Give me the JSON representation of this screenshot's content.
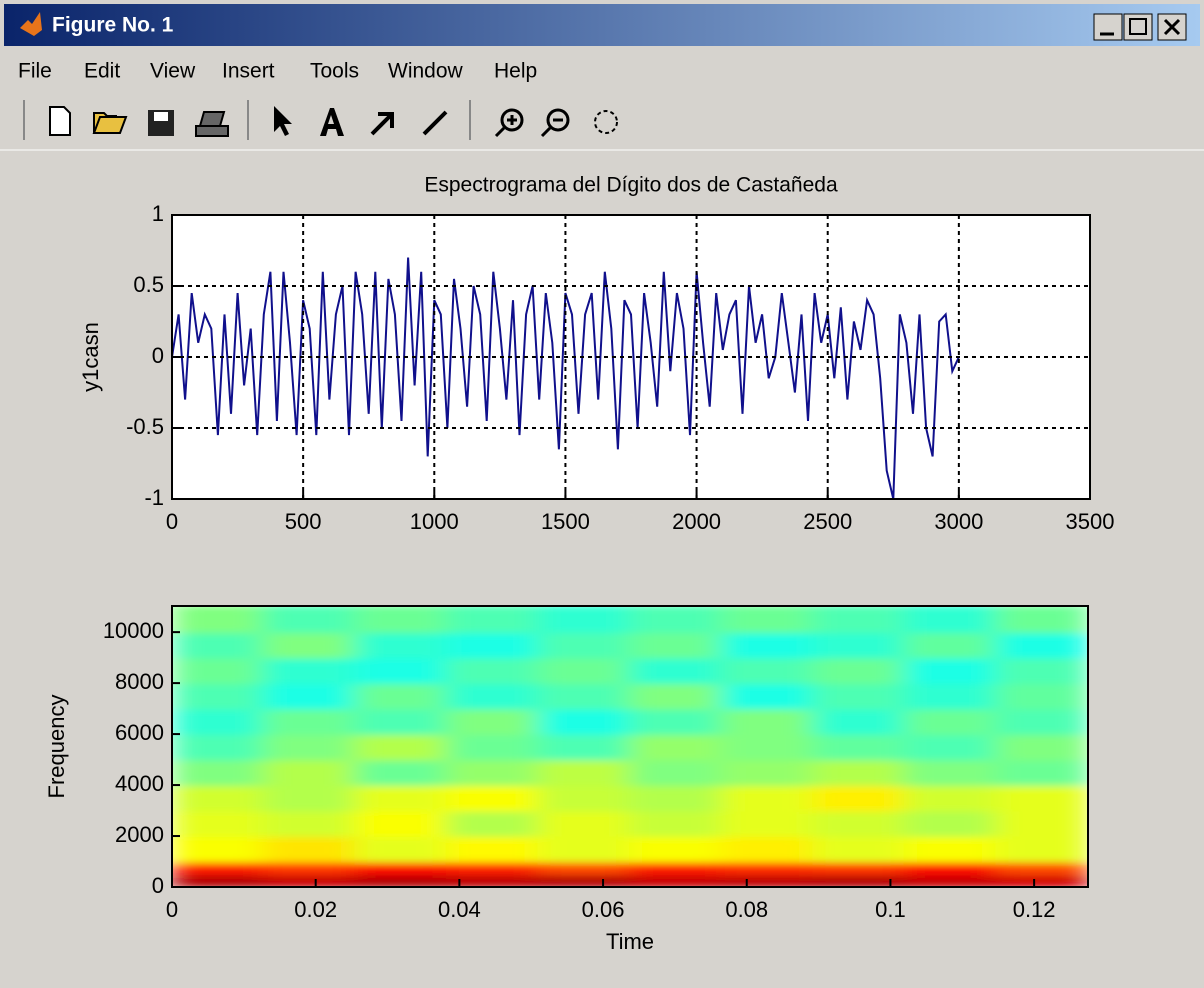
{
  "window": {
    "title": "Figure No. 1",
    "menu": [
      "File",
      "Edit",
      "View",
      "Insert",
      "Tools",
      "Window",
      "Help"
    ]
  },
  "chart_data": [
    {
      "type": "line",
      "title": "Espectrograma del Dígito dos de Castañeda",
      "ylabel": "y1casn",
      "xlim": [
        0,
        3500
      ],
      "ylim": [
        -1,
        1
      ],
      "xticks": [
        0,
        500,
        1000,
        1500,
        2000,
        2500,
        3000,
        3500
      ],
      "yticks": [
        -1,
        -0.5,
        0,
        0.5,
        1
      ],
      "grid": true,
      "x": [
        0,
        25,
        50,
        75,
        100,
        125,
        150,
        175,
        200,
        225,
        250,
        275,
        300,
        325,
        350,
        375,
        400,
        425,
        450,
        475,
        500,
        525,
        550,
        575,
        600,
        625,
        650,
        675,
        700,
        725,
        750,
        775,
        800,
        825,
        850,
        875,
        900,
        925,
        950,
        975,
        1000,
        1025,
        1050,
        1075,
        1100,
        1125,
        1150,
        1175,
        1200,
        1225,
        1250,
        1275,
        1300,
        1325,
        1350,
        1375,
        1400,
        1425,
        1450,
        1475,
        1500,
        1525,
        1550,
        1575,
        1600,
        1625,
        1650,
        1675,
        1700,
        1725,
        1750,
        1775,
        1800,
        1825,
        1850,
        1875,
        1900,
        1925,
        1950,
        1975,
        2000,
        2025,
        2050,
        2075,
        2100,
        2125,
        2150,
        2175,
        2200,
        2225,
        2250,
        2275,
        2300,
        2325,
        2350,
        2375,
        2400,
        2425,
        2450,
        2475,
        2500,
        2525,
        2550,
        2575,
        2600,
        2625,
        2650,
        2675,
        2700,
        2725,
        2750,
        2775,
        2800,
        2825,
        2850,
        2875,
        2900,
        2925,
        2950,
        2975,
        3000
      ],
      "series": [
        {
          "color": "#10108c",
          "values": [
            0,
            0.3,
            -0.3,
            0.45,
            0.1,
            0.3,
            0.2,
            -0.55,
            0.3,
            -0.4,
            0.45,
            -0.2,
            0.2,
            -0.55,
            0.3,
            0.6,
            -0.45,
            0.6,
            0.1,
            -0.55,
            0.4,
            0.2,
            -0.55,
            0.6,
            -0.3,
            0.3,
            0.5,
            -0.55,
            0.6,
            0.3,
            -0.4,
            0.6,
            -0.5,
            0.55,
            0.3,
            -0.45,
            0.7,
            -0.2,
            0.6,
            -0.7,
            0.4,
            0.3,
            -0.5,
            0.55,
            0.2,
            -0.35,
            0.5,
            0.3,
            -0.45,
            0.6,
            0.2,
            -0.3,
            0.4,
            -0.55,
            0.3,
            0.5,
            -0.3,
            0.45,
            0.1,
            -0.65,
            0.45,
            0.3,
            -0.4,
            0.3,
            0.45,
            -0.3,
            0.6,
            0.2,
            -0.65,
            0.4,
            0.3,
            -0.5,
            0.45,
            0.1,
            -0.35,
            0.6,
            -0.1,
            0.45,
            0.2,
            -0.55,
            0.6,
            0.1,
            -0.35,
            0.45,
            0.05,
            0.3,
            0.4,
            -0.4,
            0.5,
            0.1,
            0.3,
            -0.15,
            0,
            0.45,
            0.1,
            -0.25,
            0.3,
            -0.45,
            0.45,
            0.1,
            0.3,
            -0.15,
            0.35,
            -0.3,
            0.25,
            0.05,
            0.4,
            0.3,
            -0.15,
            -0.8,
            -1.0,
            0.3,
            0.1,
            -0.4,
            0.3,
            -0.5,
            -0.7,
            0.25,
            0.3,
            -0.1,
            0
          ]
        }
      ]
    },
    {
      "type": "heatmap",
      "xlabel": "Time",
      "ylabel": "Frequency",
      "xlim": [
        0,
        0.1275
      ],
      "ylim": [
        0,
        11025
      ],
      "xticks": [
        0,
        0.02,
        0.04,
        0.06,
        0.08,
        0.1,
        0.12
      ],
      "yticks": [
        0,
        2000,
        4000,
        6000,
        8000,
        10000
      ],
      "x": [
        0,
        0.01275,
        0.0255,
        0.03825,
        0.051,
        0.06375,
        0.0765,
        0.08925,
        0.102,
        0.11475,
        0.1275
      ],
      "y": [
        0,
        500,
        1000,
        2000,
        3000,
        4000,
        5000,
        6000,
        7000,
        8000,
        9000,
        10000,
        11025
      ],
      "z": [
        [
          0.95,
          0.93,
          0.95,
          0.94,
          0.95,
          0.93,
          0.94,
          0.95,
          0.93,
          0.92
        ],
        [
          0.85,
          0.82,
          0.86,
          0.84,
          0.8,
          0.85,
          0.83,
          0.82,
          0.86,
          0.8
        ],
        [
          0.62,
          0.65,
          0.6,
          0.63,
          0.6,
          0.62,
          0.64,
          0.6,
          0.62,
          0.6
        ],
        [
          0.6,
          0.58,
          0.62,
          0.55,
          0.6,
          0.57,
          0.6,
          0.58,
          0.55,
          0.6
        ],
        [
          0.58,
          0.55,
          0.6,
          0.62,
          0.57,
          0.55,
          0.6,
          0.64,
          0.58,
          0.6
        ],
        [
          0.5,
          0.55,
          0.48,
          0.52,
          0.56,
          0.5,
          0.52,
          0.55,
          0.5,
          0.48
        ],
        [
          0.45,
          0.5,
          0.55,
          0.48,
          0.45,
          0.52,
          0.5,
          0.47,
          0.45,
          0.5
        ],
        [
          0.42,
          0.48,
          0.45,
          0.5,
          0.4,
          0.45,
          0.5,
          0.42,
          0.48,
          0.45
        ],
        [
          0.45,
          0.4,
          0.48,
          0.42,
          0.45,
          0.5,
          0.4,
          0.45,
          0.42,
          0.47
        ],
        [
          0.48,
          0.42,
          0.4,
          0.45,
          0.48,
          0.42,
          0.45,
          0.48,
          0.4,
          0.45
        ],
        [
          0.45,
          0.5,
          0.42,
          0.4,
          0.45,
          0.48,
          0.4,
          0.42,
          0.47,
          0.4
        ],
        [
          0.5,
          0.45,
          0.48,
          0.45,
          0.42,
          0.45,
          0.48,
          0.45,
          0.42,
          0.48
        ]
      ],
      "colormap": "jet"
    }
  ]
}
